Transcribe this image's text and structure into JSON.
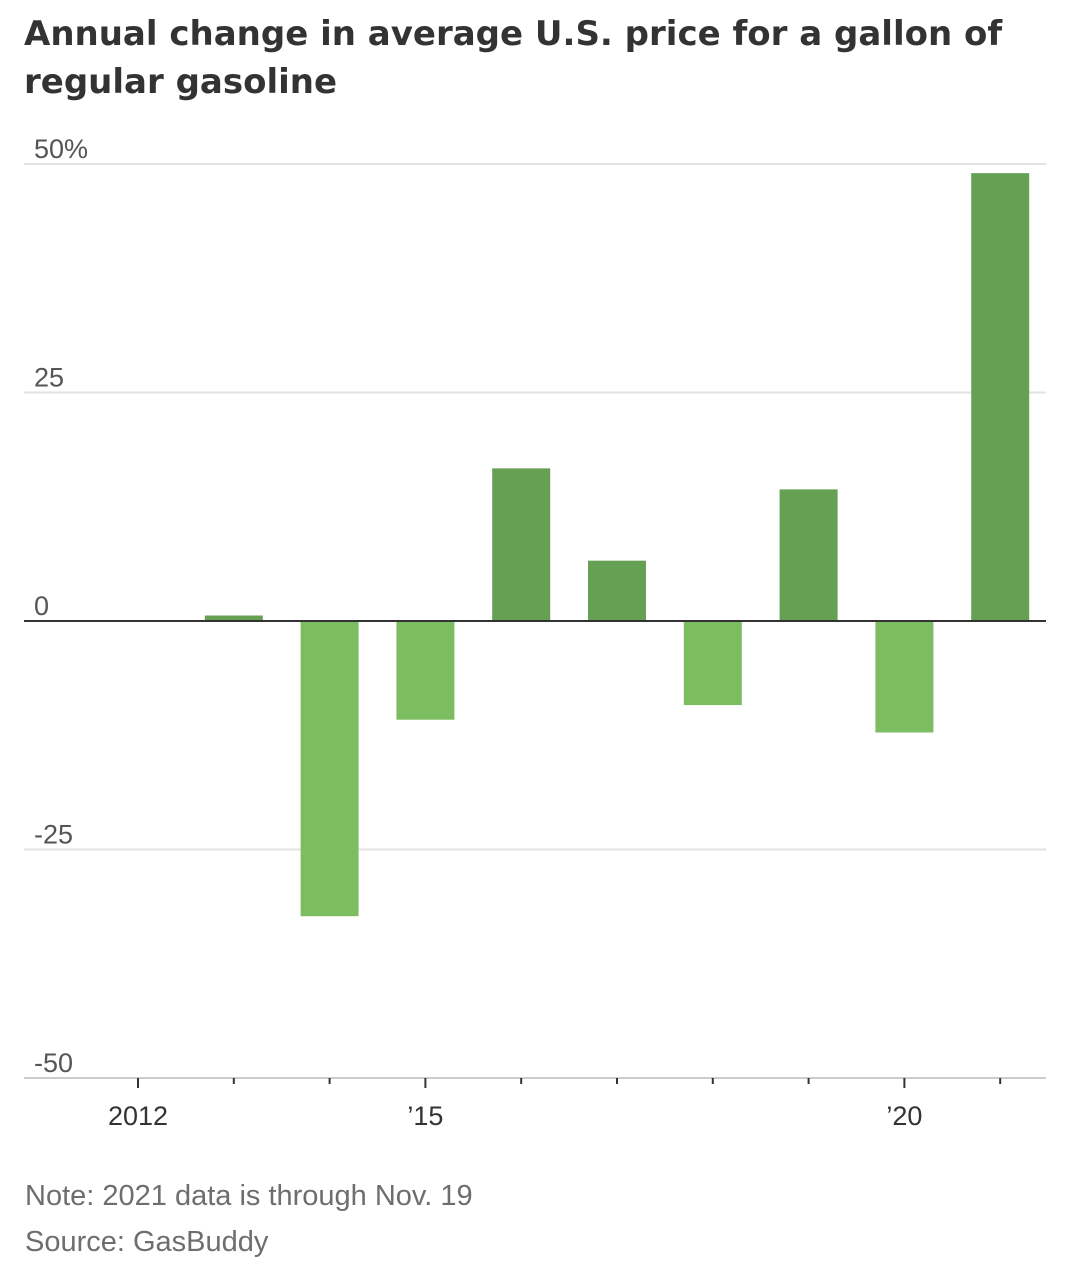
{
  "title": "Annual change in average U.S. price for a gallon of regular gasoline",
  "chart_data": {
    "type": "bar",
    "title": "Annual change in average U.S. price for a gallon of regular gasoline",
    "xlabel": "",
    "ylabel": "",
    "categories": [
      "2012",
      "2013",
      "2014",
      "2015",
      "2016",
      "2017",
      "2018",
      "2019",
      "2020",
      "2021"
    ],
    "values": [
      0,
      0.6,
      -32.3,
      -10.8,
      16.7,
      6.6,
      -9.2,
      14.4,
      -12.2,
      49.0
    ],
    "ylim": [
      -50,
      50
    ],
    "yticks": [
      {
        "value": 50,
        "label": "50%"
      },
      {
        "value": 25,
        "label": "25"
      },
      {
        "value": 0,
        "label": "0"
      },
      {
        "value": -25,
        "label": "-25"
      },
      {
        "value": -50,
        "label": "-50"
      }
    ],
    "xtick_labels": [
      {
        "category": "2012",
        "label": "2012"
      },
      {
        "category": "2015",
        "label": "’15"
      },
      {
        "category": "2020",
        "label": "’20"
      }
    ],
    "grid": true,
    "colors": {
      "positive": "#66a052",
      "negative": "#7dbd61",
      "grid": "#e2e2e2",
      "zero_line": "#333333",
      "axis": "#cccccc",
      "tick_mark": "#333333"
    }
  },
  "footer": {
    "note": "Note: 2021 data is through Nov. 19",
    "source": "Source: GasBuddy"
  }
}
